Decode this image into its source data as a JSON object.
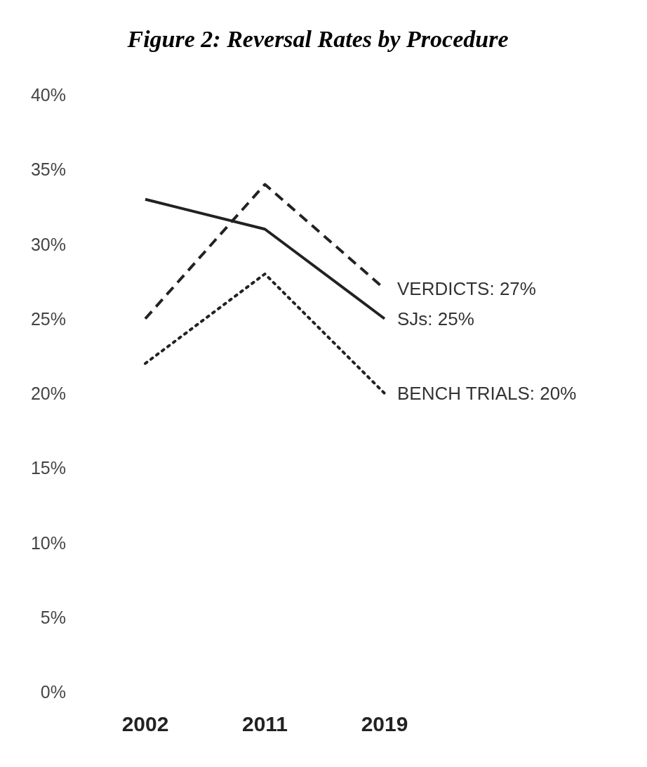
{
  "chart_data": {
    "type": "line",
    "title": "Figure 2: Reversal Rates by Procedure",
    "categories": [
      "2002",
      "2011",
      "2019"
    ],
    "ylim": [
      0,
      40
    ],
    "yticks": [
      {
        "value": 0,
        "label": "0%"
      },
      {
        "value": 5,
        "label": "5%"
      },
      {
        "value": 10,
        "label": "10%"
      },
      {
        "value": 15,
        "label": "15%"
      },
      {
        "value": 20,
        "label": "20%"
      },
      {
        "value": 25,
        "label": "25%"
      },
      {
        "value": 30,
        "label": "30%"
      },
      {
        "value": 35,
        "label": "35%"
      },
      {
        "value": 40,
        "label": "40%"
      }
    ],
    "grid": false,
    "marker": "none",
    "series": [
      {
        "name": "VERDICTS: 27%",
        "color": "#222222",
        "line_style": "dashed",
        "values": [
          25,
          34,
          27
        ]
      },
      {
        "name": "SJs: 25%",
        "color": "#222222",
        "line_style": "solid",
        "values": [
          33,
          31,
          25
        ]
      },
      {
        "name": "BENCH TRIALS: 20%",
        "color": "#222222",
        "line_style": "dotted",
        "values": [
          22,
          28,
          20
        ]
      }
    ]
  }
}
